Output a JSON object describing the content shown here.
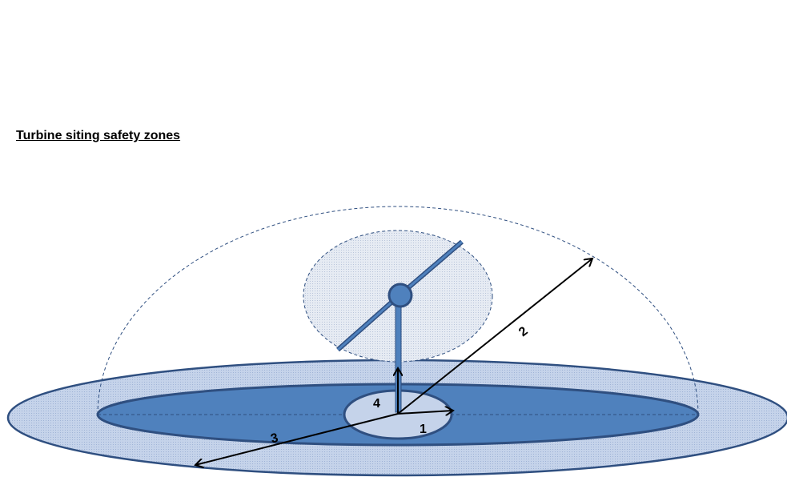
{
  "title": "Turbine siting safety zones",
  "labels": [
    "1",
    "2",
    "3",
    "4"
  ]
}
